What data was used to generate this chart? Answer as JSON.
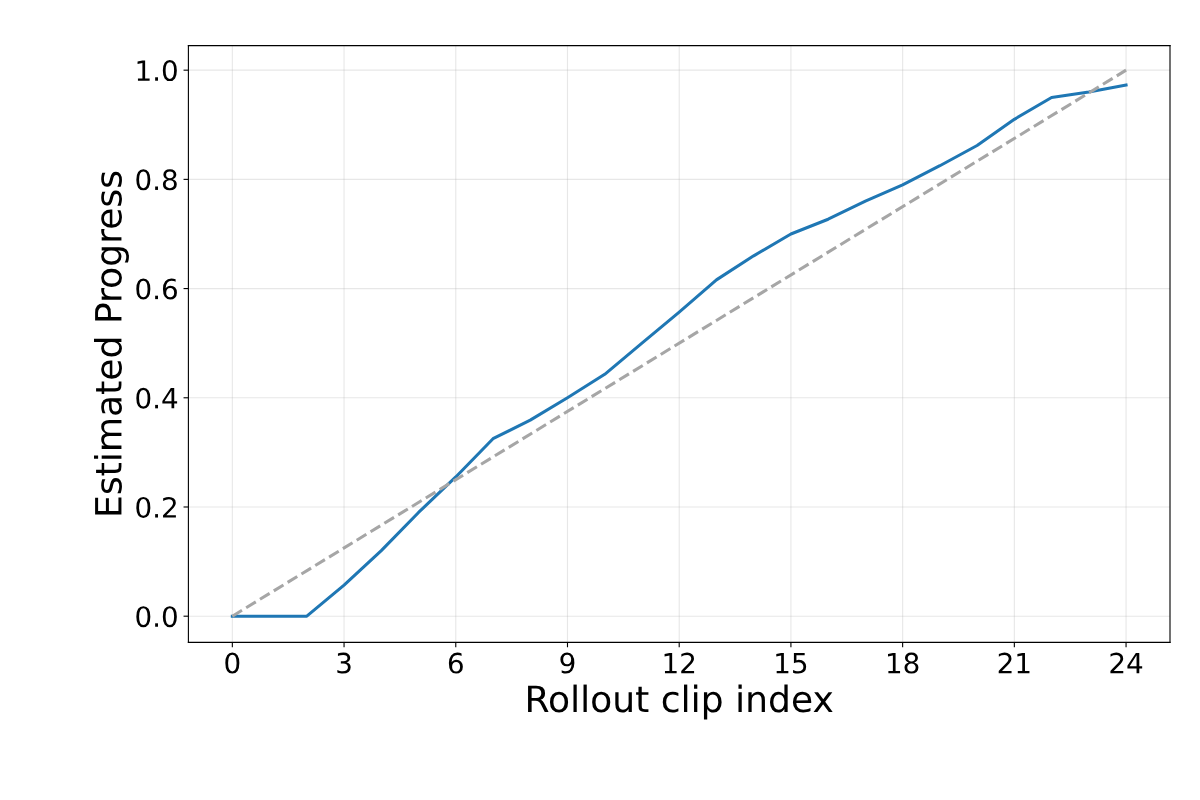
{
  "chart_data": {
    "type": "line",
    "xlabel": "Rollout clip index",
    "ylabel": "Estimated Progress",
    "xlim": [
      -1.18,
      25.18
    ],
    "xticks": [
      0,
      3,
      6,
      9,
      12,
      15,
      18,
      21,
      24
    ],
    "ylim": [
      -0.048,
      1.045
    ],
    "yticks": [
      {
        "value": 0,
        "label": "0.0"
      },
      {
        "value": 0.2,
        "label": "0.2"
      },
      {
        "value": 0.4,
        "label": "0.4"
      },
      {
        "value": 0.6,
        "label": "0.6"
      },
      {
        "value": 0.8,
        "label": "0.8"
      },
      {
        "value": 1.0,
        "label": "1.0"
      }
    ],
    "grid": true,
    "legend": false,
    "marker": "none",
    "series": [
      {
        "color": "#1f77b4",
        "line_style": "solid",
        "x": [
          0,
          1,
          2,
          3,
          4,
          5,
          6,
          7,
          8,
          9,
          10,
          11,
          12,
          13,
          14,
          15,
          16,
          17,
          18,
          19,
          20,
          21,
          22,
          23,
          24
        ],
        "values": [
          0,
          0,
          0,
          0.057,
          0.12,
          0.19,
          0.255,
          0.325,
          0.359,
          0.4,
          0.443,
          0.5,
          0.557,
          0.616,
          0.66,
          0.7,
          0.727,
          0.76,
          0.79,
          0.825,
          0.862,
          0.91,
          0.95,
          0.96,
          0.973
        ]
      },
      {
        "color": "#a6a6a6",
        "line_style": "dashed",
        "x": [
          0,
          24
        ],
        "values": [
          0,
          1
        ]
      }
    ]
  }
}
